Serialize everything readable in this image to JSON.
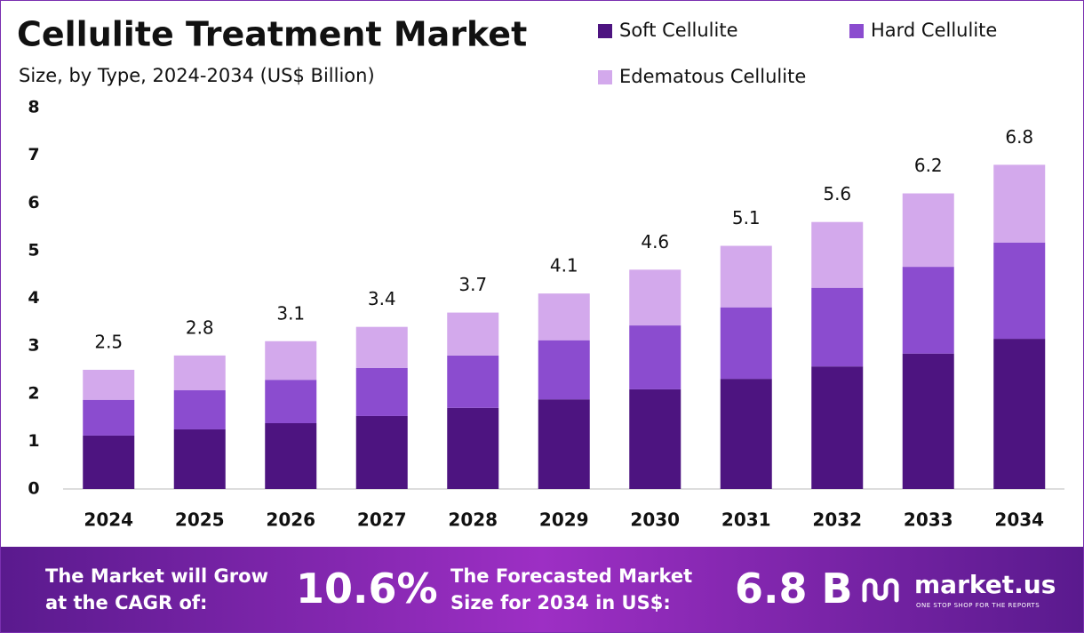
{
  "chart_data": {
    "type": "bar",
    "stacked": true,
    "title": "Cellulite Treatment Market",
    "subtitle": "Size, by Type, 2024-2034 (US$ Billion)",
    "categories": [
      "2024",
      "2025",
      "2026",
      "2027",
      "2028",
      "2029",
      "2030",
      "2031",
      "2032",
      "2033",
      "2034"
    ],
    "series": [
      {
        "name": "Soft Cellulite",
        "color": "#4d1480",
        "values": [
          1.12,
          1.25,
          1.38,
          1.53,
          1.7,
          1.88,
          2.09,
          2.31,
          2.57,
          2.84,
          3.15
        ]
      },
      {
        "name": "Hard Cellulite",
        "color": "#8b4ccf",
        "values": [
          0.75,
          0.82,
          0.91,
          1.01,
          1.1,
          1.24,
          1.34,
          1.5,
          1.65,
          1.82,
          2.02
        ]
      },
      {
        "name": "Edematous Cellulite",
        "color": "#d3a9ec",
        "values": [
          0.63,
          0.73,
          0.81,
          0.86,
          0.9,
          0.98,
          1.17,
          1.29,
          1.38,
          1.54,
          1.63
        ]
      }
    ],
    "totals": [
      2.5,
      2.8,
      3.1,
      3.4,
      3.7,
      4.1,
      4.6,
      5.1,
      5.6,
      6.2,
      6.8
    ],
    "ylim": [
      0,
      8
    ],
    "yticks": [
      0,
      1,
      2,
      3,
      4,
      5,
      6,
      7,
      8
    ],
    "grid": false
  },
  "footer": {
    "cagr_text": [
      "The Market will Grow",
      "at the CAGR of:"
    ],
    "cagr_value": "10.6%",
    "forecast_text": [
      "The Forecasted Market",
      "Size for 2034 in US$:"
    ],
    "forecast_value": "6.8 B",
    "logo": "market.us",
    "tagline": "ONE STOP SHOP FOR THE REPORTS"
  }
}
